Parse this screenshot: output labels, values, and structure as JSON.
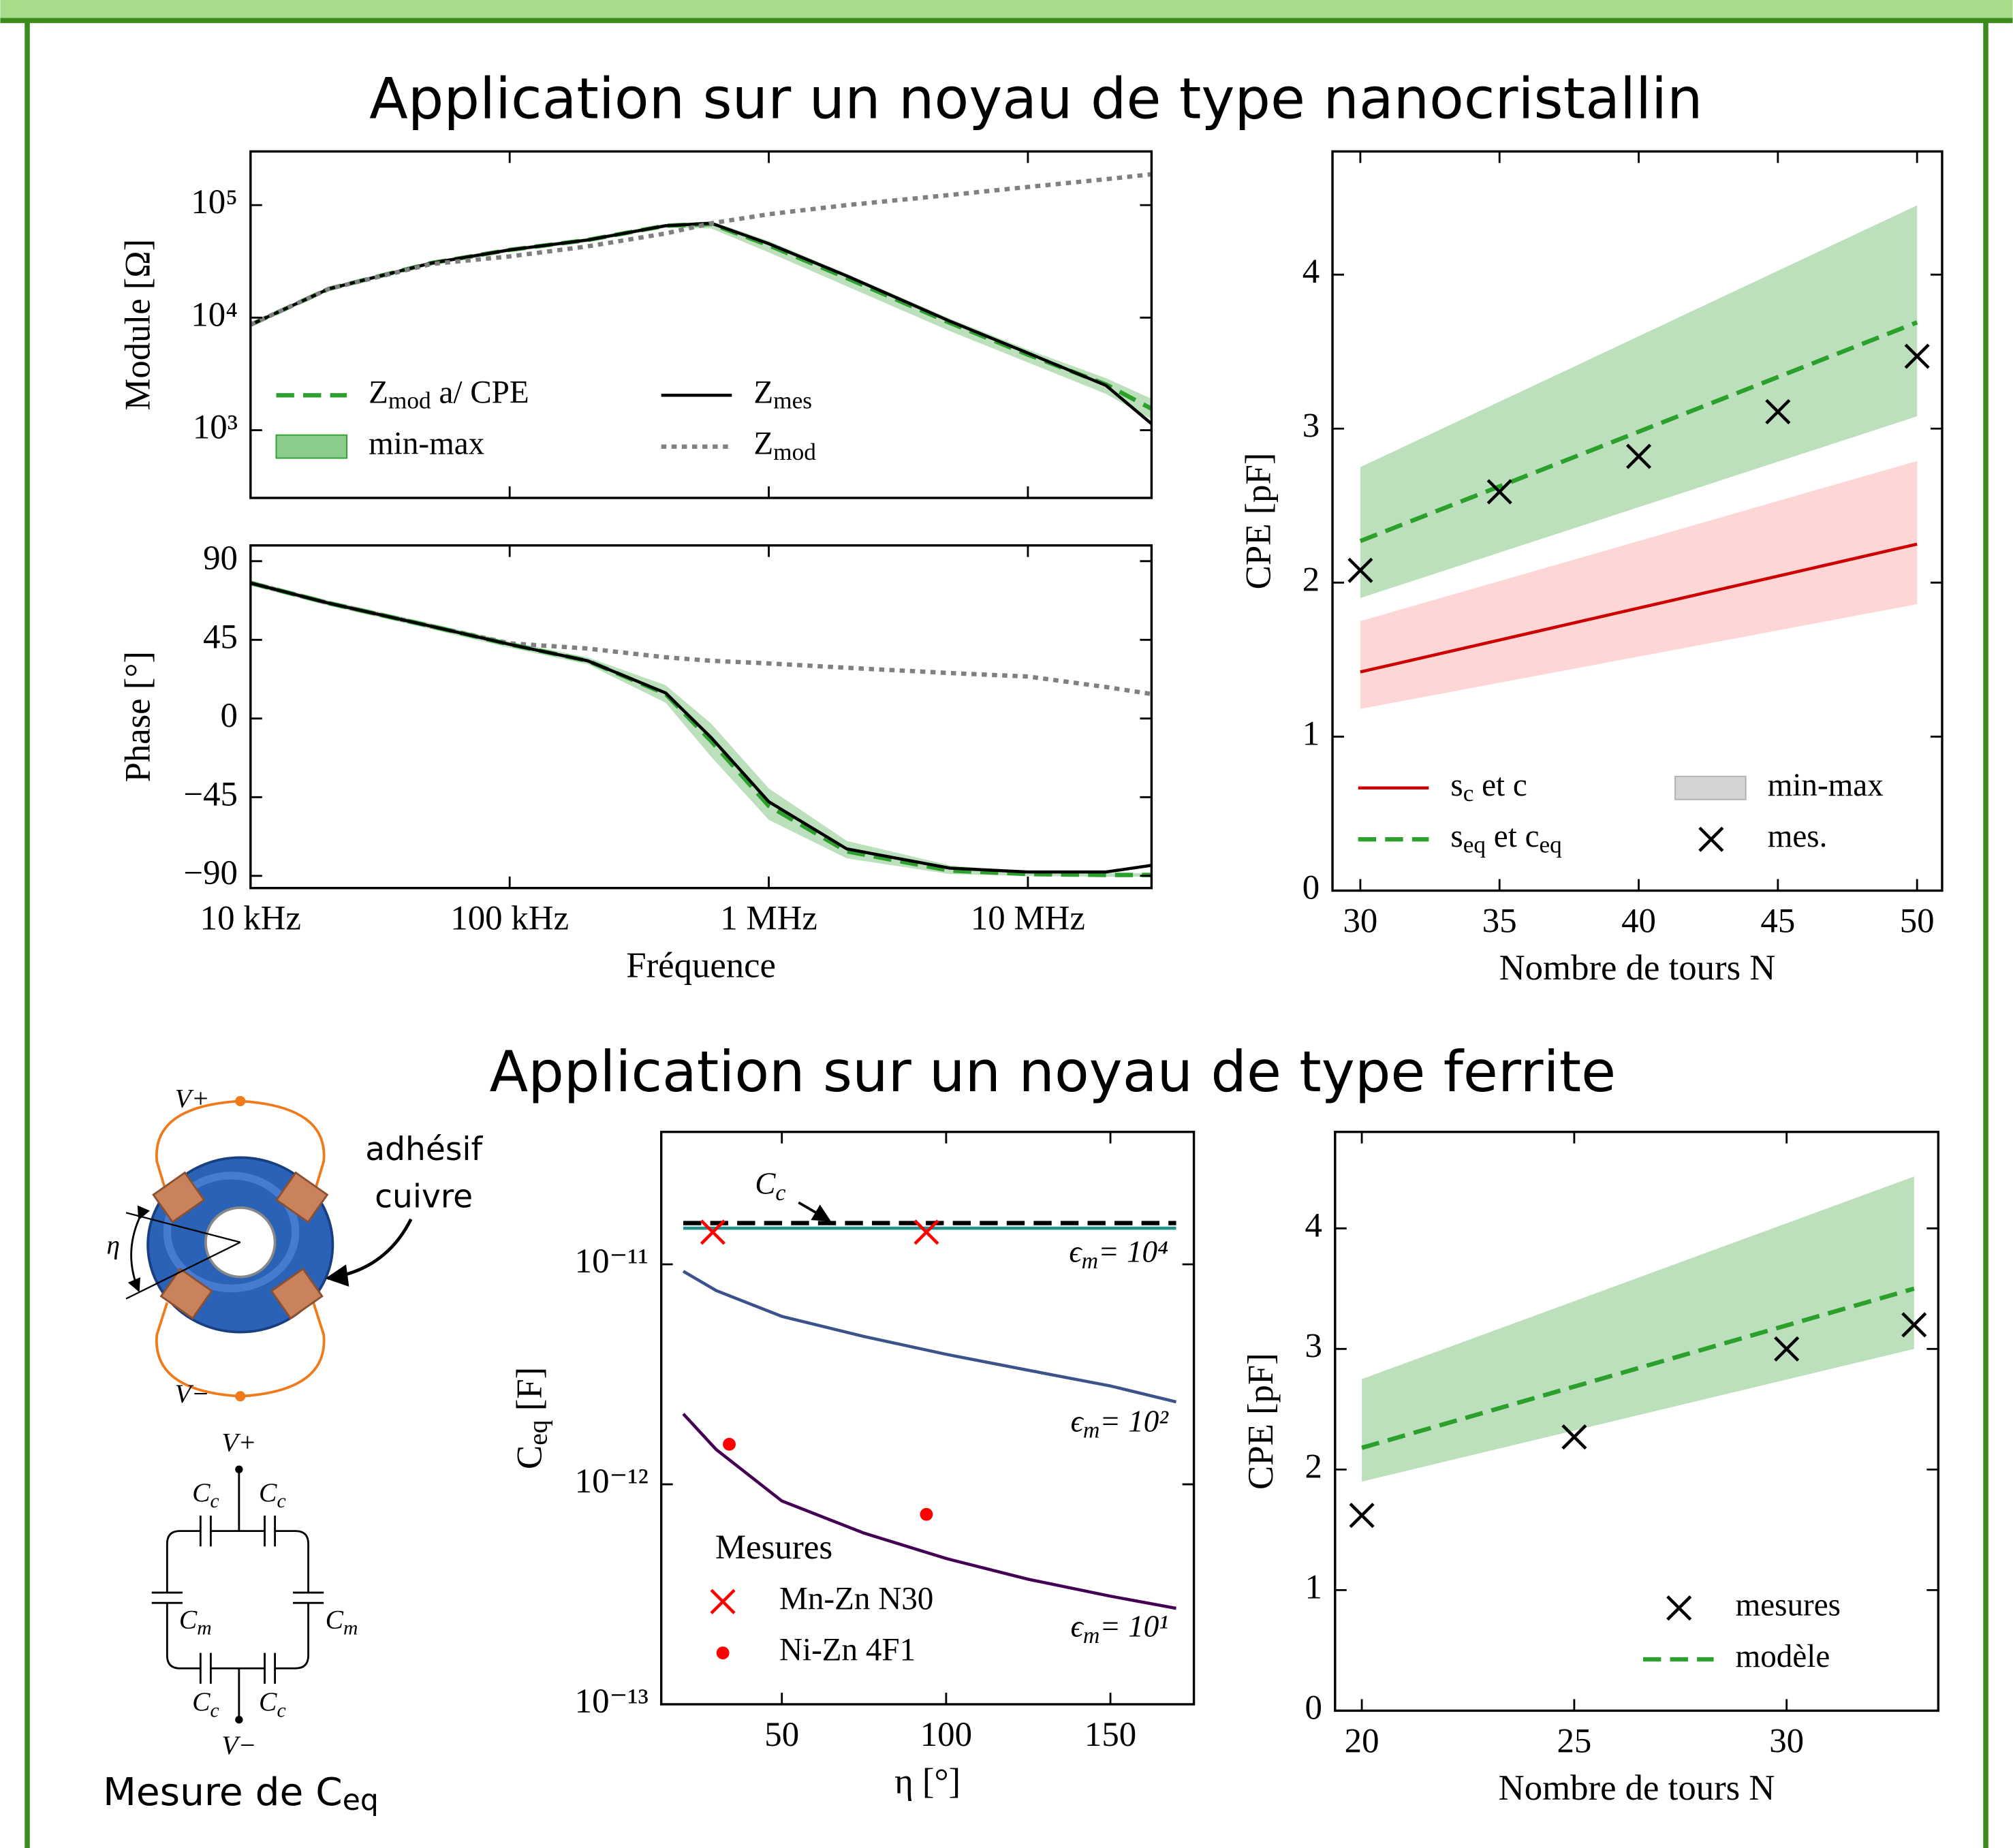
{
  "titles": [
    "Application sur un noyau de type nanocristallin",
    "Application sur un noyau de type ferrite"
  ],
  "diagram": {
    "vplus": "V+",
    "vminus": "V−",
    "adhesive": [
      "adhésif",
      "cuivre"
    ],
    "eta": "η",
    "circuit": {
      "vplus": "V+",
      "vminus": "V−",
      "cc": [
        "C_{c}",
        "C_{c}",
        "C_{c}",
        "C_{c}"
      ],
      "cm": [
        "C_{m}",
        "C_{m}"
      ]
    },
    "caption": "Mesure de C_{eq}"
  },
  "chart_data": [
    {
      "type": "line",
      "ylabel": "Module [Ω]",
      "xlog": true,
      "ylog": true,
      "xlim": [
        10000,
        30000000
      ],
      "ylim": [
        250,
        300000
      ],
      "xticks": [
        10000,
        100000,
        1000000,
        10000000
      ],
      "xtick_labels": false,
      "yticks": [
        {
          "value": 1000,
          "label": "10³"
        },
        {
          "value": 10000,
          "label": "10⁴"
        },
        {
          "value": 100000,
          "label": "10⁵"
        }
      ],
      "legend": "lower left",
      "legend_columns": 2,
      "x": [
        10000,
        20000,
        50000,
        100000,
        200000,
        400000,
        600000,
        1000000,
        2000000,
        5000000,
        10000000,
        20000000,
        30000000
      ],
      "series": [
        {
          "kind": "line",
          "name": "Z_{mod} a/ CPE",
          "color": "#2ca02c",
          "style": "dashed",
          "values": [
            8650,
            18000,
            30600,
            40000,
            49000,
            65600,
            68000,
            44000,
            22500,
            9000,
            4700,
            2550,
            1550
          ]
        },
        {
          "kind": "band",
          "name": "min-max",
          "color": "#2ca02c",
          "lower": [
            8300,
            17300,
            29400,
            38400,
            47000,
            63000,
            62000,
            38000,
            19000,
            7600,
            4000,
            2100,
            1250
          ],
          "upper": [
            9000,
            18700,
            31800,
            41600,
            51000,
            68200,
            72000,
            48000,
            24500,
            9800,
            5200,
            2900,
            1900
          ]
        },
        {
          "kind": "line",
          "name": "Z_{mes}",
          "color": "#000000",
          "style": "solid",
          "values": [
            8650,
            18000,
            30600,
            40000,
            49000,
            65600,
            69000,
            45400,
            23500,
            9300,
            4850,
            2500,
            1140
          ]
        },
        {
          "kind": "line",
          "name": "Z_{mod}",
          "color": "#808080",
          "style": "dotted",
          "values": [
            8650,
            18000,
            30000,
            35000,
            43000,
            56000,
            69000,
            83000,
            100000,
            123000,
            145000,
            170000,
            188000
          ]
        }
      ]
    },
    {
      "type": "line",
      "ylabel": "Phase [°]",
      "xlabel": "Fréquence",
      "xlog": true,
      "xlim": [
        10000,
        30000000
      ],
      "ylim": [
        -97,
        99
      ],
      "xticks": [
        {
          "value": 10000,
          "label": "10 kHz"
        },
        {
          "value": 100000,
          "label": "100 kHz"
        },
        {
          "value": 1000000,
          "label": "1 MHz"
        },
        {
          "value": 10000000,
          "label": "10 MHz"
        }
      ],
      "yticks": [
        90,
        45,
        0,
        {
          "value": -45,
          "label": "−45"
        },
        {
          "value": -90,
          "label": "−90"
        }
      ],
      "x": [
        10000,
        20000,
        50000,
        100000,
        200000,
        400000,
        600000,
        1000000,
        2000000,
        5000000,
        10000000,
        20000000,
        30000000
      ],
      "series": [
        {
          "kind": "band",
          "color": "#2ca02c",
          "lower": [
            76,
            64.5,
            51,
            40.5,
            31,
            9,
            -22,
            -58,
            -80,
            -89,
            -90,
            -90.5,
            -90.5
          ],
          "upper": [
            79,
            67.5,
            54.4,
            44,
            35,
            19,
            -3,
            -40,
            -70,
            -84,
            -88,
            -88.5,
            -88.5
          ]
        },
        {
          "kind": "line",
          "color": "#808080",
          "style": "dotted",
          "values": [
            77.5,
            66,
            52.7,
            43,
            40,
            35,
            33,
            31.5,
            29,
            26,
            24,
            18,
            14
          ]
        },
        {
          "kind": "line",
          "color": "#2ca02c",
          "style": "dashed",
          "values": [
            77.5,
            66,
            52.7,
            42.4,
            33,
            14,
            -13,
            -50,
            -76,
            -87,
            -89,
            -89.5,
            -89.5
          ]
        },
        {
          "kind": "line",
          "color": "#000000",
          "style": "solid",
          "values": [
            77.5,
            66,
            52.7,
            42.4,
            33,
            14.6,
            -11,
            -47.6,
            -74.6,
            -85.6,
            -87.8,
            -87.8,
            -84
          ]
        }
      ]
    },
    {
      "type": "line",
      "ylabel": "CPE [pF]",
      "xlabel": "Nombre de tours N",
      "xlim": [
        29,
        50.9
      ],
      "ylim": [
        0,
        4.8
      ],
      "xticks": [
        30,
        35,
        40,
        45,
        50
      ],
      "yticks": [
        0,
        1,
        2,
        3,
        4
      ],
      "legend": "lower left",
      "legend_columns": 2,
      "series": [
        {
          "kind": "band",
          "color": "#ff8080",
          "x": [
            30,
            50
          ],
          "lower": [
            1.18,
            1.86
          ],
          "upper": [
            1.75,
            2.79
          ]
        },
        {
          "kind": "line",
          "name": "s_{c} et c",
          "color": "#cc0000",
          "style": "solid",
          "x": [
            30,
            50
          ],
          "values": [
            1.42,
            2.25
          ]
        },
        {
          "kind": "line",
          "name": "s_{eq} et c_{eq}",
          "color": "#2ca02c",
          "style": "dashed",
          "x": [
            30,
            50
          ],
          "values": [
            2.27,
            3.69
          ]
        },
        {
          "kind": "band",
          "name": "min-max",
          "color": "#2ca02c",
          "legend_color": "#b0b0b0",
          "x": [
            30,
            50
          ],
          "lower": [
            1.9,
            3.08
          ],
          "upper": [
            2.75,
            4.45
          ]
        },
        {
          "kind": "scatter",
          "name": "mes.",
          "marker": "x",
          "color": "#000000",
          "x": [
            30,
            35,
            40,
            45,
            50
          ],
          "values": [
            2.08,
            2.59,
            2.82,
            3.11,
            3.47
          ]
        }
      ]
    },
    {
      "type": "line",
      "ylabel": "C_{eq} [F]",
      "xlabel": "η [°]",
      "ylog": true,
      "xlim": [
        13.3,
        175.4
      ],
      "ylim": [
        1e-13,
        4e-11
      ],
      "xticks": [
        50,
        100,
        150
      ],
      "yticks": [
        {
          "value": 1e-13,
          "label": "10⁻¹³"
        },
        {
          "value": 1e-12,
          "label": "10⁻¹²"
        },
        {
          "value": 1e-11,
          "label": "10⁻¹¹"
        }
      ],
      "legend": "lower left",
      "legend_title": "Mesures",
      "annotations": [
        {
          "text": "C_{c}",
          "color": "#000000"
        },
        {
          "text": "ϵ_{m}= 10⁴",
          "color": "#21918c"
        },
        {
          "text": "ϵ_{m}= 10²",
          "color": "#3b528b"
        },
        {
          "text": "ϵ_{m}= 10¹",
          "color": "#440154"
        }
      ],
      "series": [
        {
          "kind": "line",
          "color": "#21918c",
          "style": "solid",
          "x": [
            20,
            170
          ],
          "values": [
            1.46e-11,
            1.46e-11
          ]
        },
        {
          "kind": "line",
          "color": "#000000",
          "style": "dashed",
          "x": [
            20,
            170
          ],
          "values": [
            1.54e-11,
            1.54e-11
          ]
        },
        {
          "kind": "line",
          "color": "#3b528b",
          "style": "solid",
          "x": [
            20,
            30,
            50,
            75,
            100,
            125,
            150,
            170
          ],
          "values": [
            9.3e-12,
            7.6e-12,
            5.8e-12,
            4.7e-12,
            3.9e-12,
            3.3e-12,
            2.8e-12,
            2.37e-12
          ]
        },
        {
          "kind": "line",
          "color": "#440154",
          "style": "solid",
          "x": [
            20,
            30,
            50,
            75,
            100,
            125,
            150,
            170
          ],
          "values": [
            2.09e-12,
            1.44e-12,
            8.4e-13,
            6e-13,
            4.6e-13,
            3.7e-13,
            3.1e-13,
            2.73e-13
          ]
        },
        {
          "kind": "scatter",
          "name": "Mn-Zn N30",
          "marker": "x",
          "color": "#ff0000",
          "x": [
            29,
            94
          ],
          "values": [
            1.4e-11,
            1.4e-11
          ]
        },
        {
          "kind": "scatter",
          "name": "Ni-Zn 4F1",
          "marker": "dot",
          "color": "#ff0000",
          "x": [
            34,
            94
          ],
          "values": [
            1.52e-12,
            7.3e-13
          ]
        }
      ]
    },
    {
      "type": "line",
      "ylabel": "CPE [pF]",
      "xlabel": "Nombre de tours N",
      "xlim": [
        19.37,
        33.57
      ],
      "ylim": [
        0,
        4.8
      ],
      "xticks": [
        20,
        25,
        30
      ],
      "yticks": [
        0,
        1,
        2,
        3,
        4
      ],
      "legend": "lower right",
      "series": [
        {
          "kind": "band",
          "color": "#2ca02c",
          "x": [
            20,
            33
          ],
          "lower": [
            1.9,
            3.0
          ],
          "upper": [
            2.75,
            4.43
          ]
        },
        {
          "kind": "scatter",
          "name": "mesures",
          "marker": "x",
          "color": "#000000",
          "x": [
            20,
            25,
            30,
            33
          ],
          "values": [
            1.62,
            2.27,
            3.0,
            3.2
          ]
        },
        {
          "kind": "line",
          "name": "modèle",
          "color": "#2ca02c",
          "style": "dashed",
          "x": [
            20,
            33
          ],
          "values": [
            2.18,
            3.5
          ]
        }
      ]
    }
  ]
}
